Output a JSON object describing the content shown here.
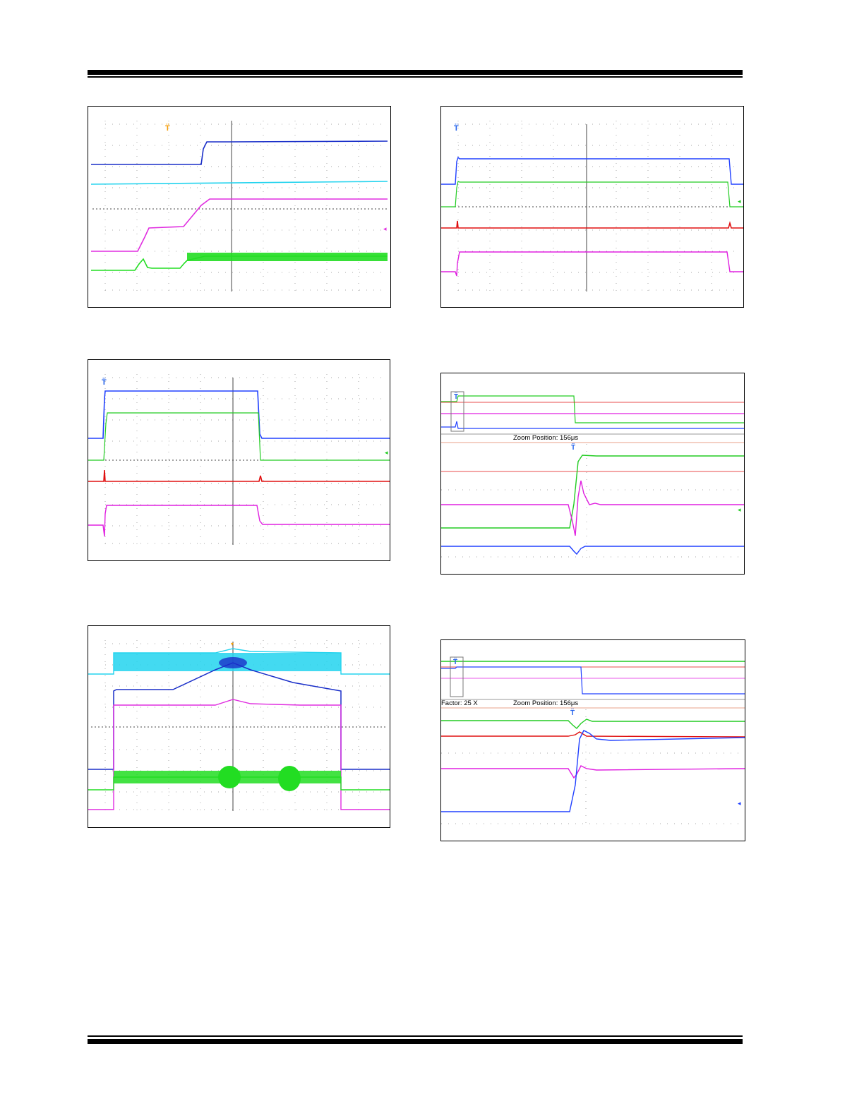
{
  "page": {
    "type": "datasheet-page",
    "content": "oscilloscope waveform captures"
  },
  "figures": [
    {
      "id": "scope-1",
      "trace_colors": [
        "#1a2fc9",
        "#22d3ee",
        "#e02ee0",
        "#22dd22"
      ],
      "trigger_marker_color": "#f59e0b"
    },
    {
      "id": "scope-2",
      "trace_colors": [
        "#2040ff",
        "#22cc22",
        "#e01010",
        "#e020e0"
      ],
      "trigger_marker_color": "#2563eb"
    },
    {
      "id": "scope-3",
      "trace_colors": [
        "#22d3ee",
        "#1a2fc9",
        "#e02ee0",
        "#22dd22"
      ],
      "trigger_marker_color": "#f59e0b"
    },
    {
      "id": "scope-4",
      "trace_colors": [
        "#2040ff",
        "#22cc22",
        "#e01010",
        "#e020e0"
      ],
      "trigger_marker_color": "#2563eb"
    },
    {
      "id": "scope-5",
      "trace_colors": [
        "#22cc22",
        "#e020e0",
        "#e01010",
        "#2040ff"
      ],
      "trigger_marker_color": "#2563eb",
      "zoom_factor_text": "Factor: 25 X",
      "zoom_position_text": "Zoom Position: 156μs"
    },
    {
      "id": "scope-6",
      "trace_colors": [
        "#22cc22",
        "#e01010",
        "#e020e0",
        "#2040ff"
      ],
      "trigger_marker_color": "#2563eb",
      "zoom_factor_text": "Factor: 25 X",
      "zoom_position_text": "Zoom Position: 156μs"
    }
  ]
}
